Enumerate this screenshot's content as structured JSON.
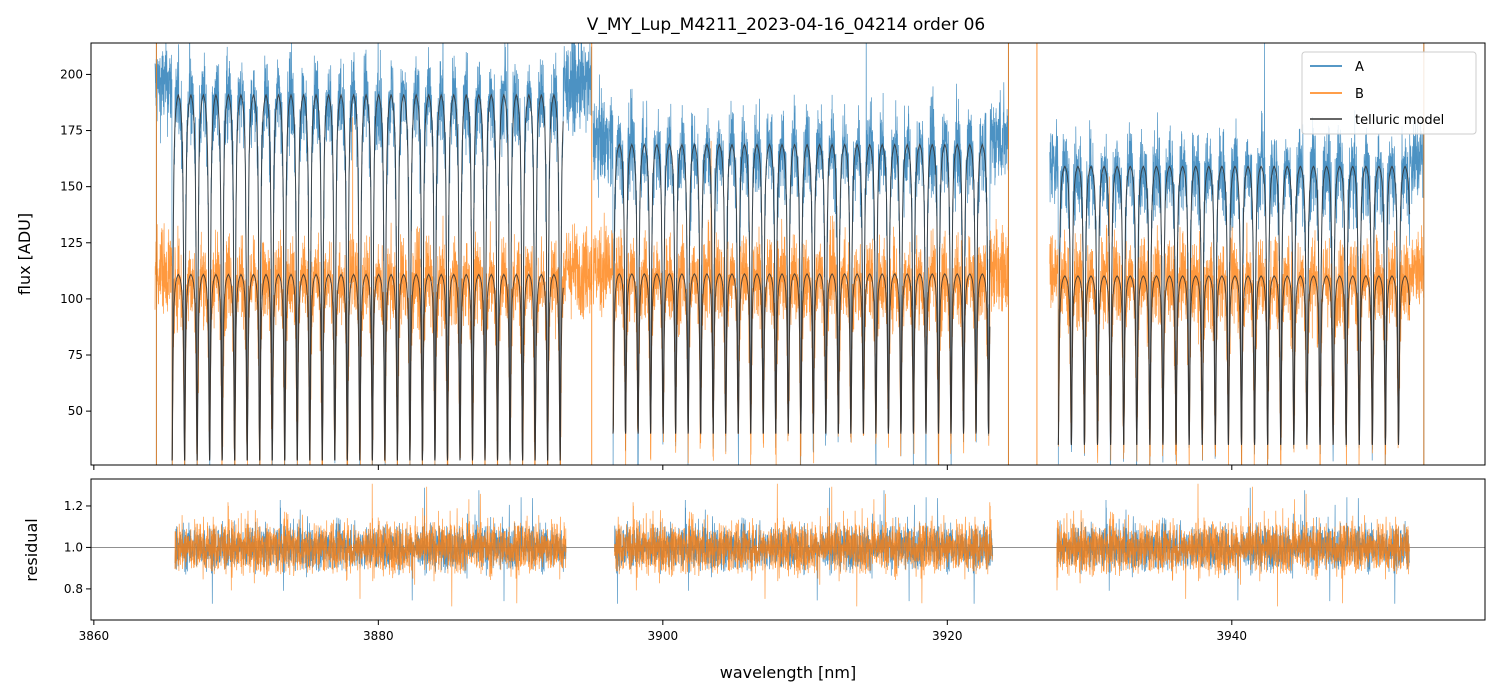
{
  "chart_data": {
    "type": "line",
    "title": "V_MY_Lup_M4211_2023-04-16_04214  order 06",
    "xlabel": "wavelength [nm]",
    "xlim": [
      3859.8,
      3957.8
    ],
    "xticks": [
      3860,
      3880,
      3900,
      3920,
      3940
    ],
    "colors": {
      "A": "#1f77b4",
      "B": "#ff7f0e",
      "model": "#333333",
      "ref": "#808080"
    },
    "legend_position": "top-right",
    "panels": [
      {
        "name": "flux",
        "ylabel": "flux [ADU]",
        "ylim": [
          26,
          214
        ],
        "yticks": [
          50,
          75,
          100,
          125,
          150,
          175,
          200
        ],
        "series": [
          {
            "name": "A",
            "segments": [
              {
                "x_range": [
                  3864.3,
                  3895.0
                ],
                "level": 195
              },
              {
                "x_range": [
                  3895.1,
                  3924.3
                ],
                "level": 172
              },
              {
                "x_range": [
                  3927.2,
                  3953.5
                ],
                "level": 162
              }
            ]
          },
          {
            "name": "B",
            "segments": [
              {
                "x_range": [
                  3864.3,
                  3895.0
                ],
                "level": 113
              },
              {
                "x_range": [
                  3895.1,
                  3924.3
                ],
                "level": 113
              },
              {
                "x_range": [
                  3927.2,
                  3953.5
                ],
                "level": 112
              }
            ]
          },
          {
            "name": "telluric model",
            "segments": [
              {
                "x_range": [
                  3865.5,
                  3893.0
                ],
                "level_A": 195,
                "level_B": 113,
                "line_spacing_nm": 0.88,
                "min_A": 28,
                "min_B": 28
              },
              {
                "x_range": [
                  3896.5,
                  3923.0
                ],
                "level_A": 172,
                "level_B": 113,
                "line_spacing_nm": 0.88,
                "min_A": 40,
                "min_B": 40
              },
              {
                "x_range": [
                  3927.8,
                  3952.5
                ],
                "level_A": 162,
                "level_B": 112,
                "line_spacing_nm": 0.92,
                "min_A": 35,
                "min_B": 35
              }
            ]
          }
        ]
      },
      {
        "name": "residual",
        "ylabel": "residual",
        "ylim": [
          0.65,
          1.33
        ],
        "yticks": [
          0.8,
          1.0,
          1.2
        ],
        "hline": 1.0,
        "series": [
          {
            "name": "A",
            "segments": [
              [
                3865.7,
                3893.2
              ],
              [
                3896.6,
                3923.2
              ],
              [
                3927.7,
                3952.5
              ]
            ],
            "center": 1.0,
            "spread": 0.1
          },
          {
            "name": "B",
            "segments": [
              [
                3865.7,
                3893.2
              ],
              [
                3896.6,
                3923.2
              ],
              [
                3927.7,
                3952.5
              ]
            ],
            "center": 1.0,
            "spread": 0.12
          }
        ]
      }
    ],
    "legend": [
      "A",
      "B",
      "telluric model"
    ]
  }
}
